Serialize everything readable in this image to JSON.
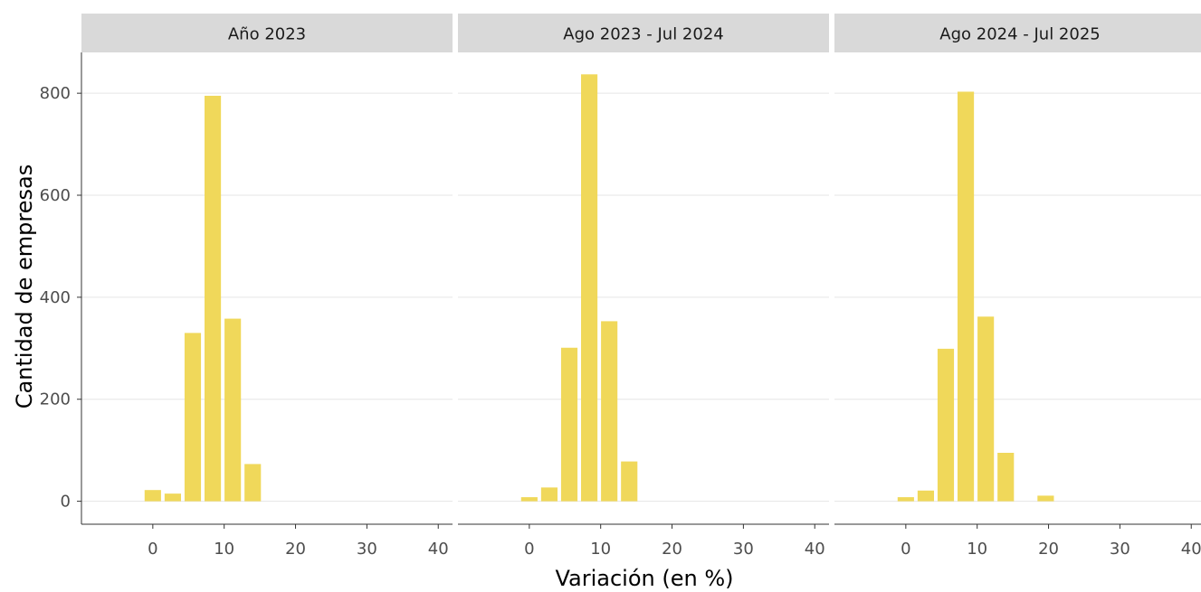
{
  "chart_data": {
    "type": "bar",
    "xlabel": "Variación (en %)",
    "ylabel": "Cantidad de empresas",
    "xlim": [
      -10,
      42
    ],
    "ylim": [
      -45,
      880
    ],
    "x_ticks": [
      0,
      10,
      20,
      30,
      40
    ],
    "y_ticks": [
      0,
      200,
      400,
      600,
      800
    ],
    "bin_width": 2.8,
    "color": "#f0d85a",
    "grid": true,
    "panels": [
      {
        "title": "Año 2023",
        "bars": [
          {
            "x": 0,
            "y": 22
          },
          {
            "x": 2.8,
            "y": 15
          },
          {
            "x": 5.6,
            "y": 330
          },
          {
            "x": 8.4,
            "y": 795
          },
          {
            "x": 11.2,
            "y": 358
          },
          {
            "x": 14.0,
            "y": 73
          }
        ]
      },
      {
        "title": "Ago 2023 - Jul 2024",
        "bars": [
          {
            "x": 0,
            "y": 8
          },
          {
            "x": 2.8,
            "y": 27
          },
          {
            "x": 5.6,
            "y": 301
          },
          {
            "x": 8.4,
            "y": 837
          },
          {
            "x": 11.2,
            "y": 353
          },
          {
            "x": 14.0,
            "y": 78
          }
        ]
      },
      {
        "title": "Ago 2024 - Jul 2025",
        "bars": [
          {
            "x": 0,
            "y": 8
          },
          {
            "x": 2.8,
            "y": 21
          },
          {
            "x": 5.6,
            "y": 299
          },
          {
            "x": 8.4,
            "y": 803
          },
          {
            "x": 11.2,
            "y": 362
          },
          {
            "x": 14.0,
            "y": 95
          },
          {
            "x": 19.6,
            "y": 11
          }
        ]
      }
    ]
  }
}
